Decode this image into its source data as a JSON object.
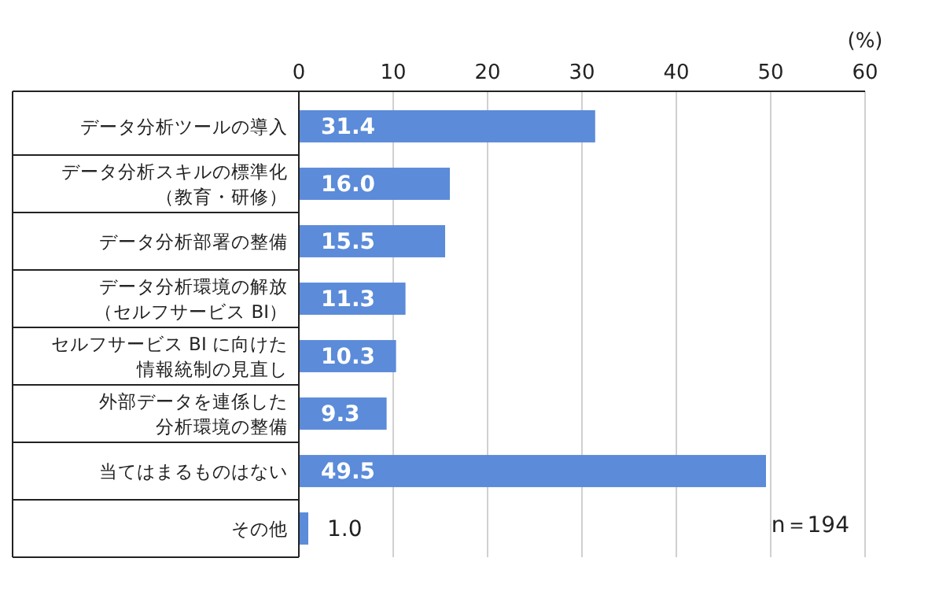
{
  "chart_data": {
    "type": "bar",
    "orientation": "horizontal",
    "categories": [
      "データ分析ツールの導入",
      "データ分析スキルの標準化（教育・研修）",
      "データ分析部署の整備",
      "データ分析環境の解放（セルフサービス BI）",
      "セルフサービス BI に向けた情報統制の見直し",
      "外部データを連係した分析環境の整備",
      "当てはまるものはない",
      "その他"
    ],
    "values": [
      31.4,
      16.0,
      15.5,
      11.3,
      10.3,
      9.3,
      49.5,
      1.0
    ],
    "value_labels": [
      "31.4",
      "16.0",
      "15.5",
      "11.3",
      "10.3",
      "9.3",
      "49.5",
      "1.0"
    ],
    "color": "#5b8bd9",
    "xlim": [
      0,
      60
    ],
    "xticks": [
      0,
      10,
      20,
      30,
      40,
      50,
      60
    ],
    "grid": "x",
    "annotations": [
      "(%)",
      "n＝194"
    ]
  }
}
